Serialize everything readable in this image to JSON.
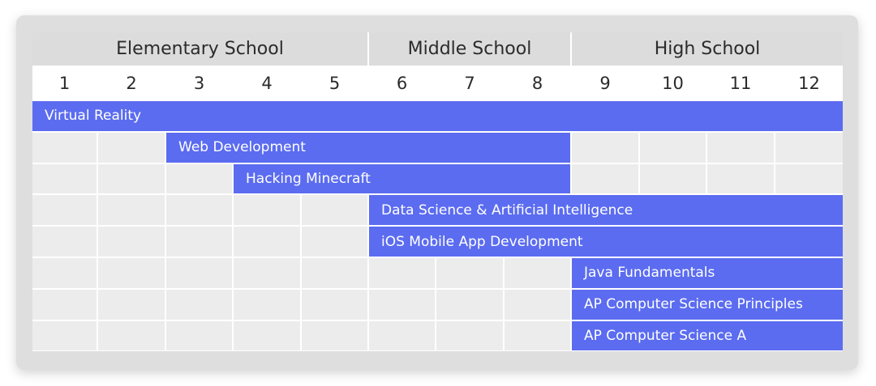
{
  "colors": {
    "card": "#dedede",
    "stage_header": "#dcdcdc",
    "empty_cell": "#ececec",
    "bar": "#5b6cf0",
    "text_dark": "#2b2b2b",
    "text_light": "#ffffff"
  },
  "stages": [
    {
      "label": "Elementary School",
      "grades": [
        1,
        5
      ]
    },
    {
      "label": "Middle School",
      "grades": [
        6,
        8
      ]
    },
    {
      "label": "High School",
      "grades": [
        9,
        12
      ]
    }
  ],
  "grades": [
    "1",
    "2",
    "3",
    "4",
    "5",
    "6",
    "7",
    "8",
    "9",
    "10",
    "11",
    "12"
  ],
  "courses": [
    {
      "label": "Virtual Reality",
      "start_grade": 1,
      "end_grade": 12
    },
    {
      "label": "Web Development",
      "start_grade": 3,
      "end_grade": 8
    },
    {
      "label": "Hacking Minecraft",
      "start_grade": 4,
      "end_grade": 8
    },
    {
      "label": "Data Science & Artificial Intelligence",
      "start_grade": 6,
      "end_grade": 12
    },
    {
      "label": "iOS Mobile App Development",
      "start_grade": 6,
      "end_grade": 12
    },
    {
      "label": "Java Fundamentals",
      "start_grade": 9,
      "end_grade": 12
    },
    {
      "label": "AP Computer Science Principles",
      "start_grade": 9,
      "end_grade": 12
    },
    {
      "label": "AP Computer Science A",
      "start_grade": 9,
      "end_grade": 12
    }
  ]
}
